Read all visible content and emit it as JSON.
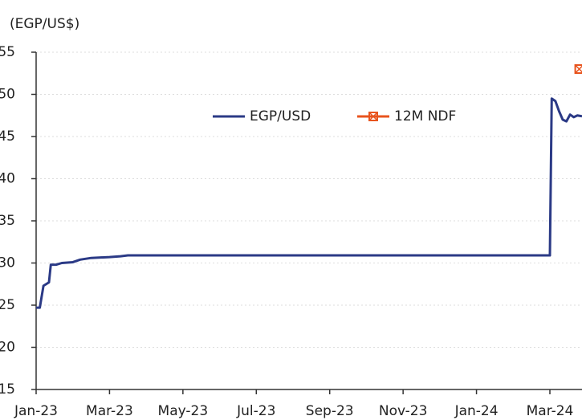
{
  "chart_data": {
    "type": "line",
    "title": "(EGP/US$)",
    "xlim": [
      0,
      14.875
    ],
    "xticks": [
      {
        "value": 0,
        "label": "Jan-23"
      },
      {
        "value": 2,
        "label": "Mar-23"
      },
      {
        "value": 4,
        "label": "May-23"
      },
      {
        "value": 6,
        "label": "Jul-23"
      },
      {
        "value": 8,
        "label": "Sep-23"
      },
      {
        "value": 10,
        "label": "Nov-23"
      },
      {
        "value": 12,
        "label": "Jan-24"
      },
      {
        "value": 14,
        "label": "Mar-24"
      }
    ],
    "ylim": [
      15,
      55
    ],
    "yticks": [
      15,
      20,
      25,
      30,
      35,
      40,
      45,
      50,
      55
    ],
    "grid": true,
    "legend": "top",
    "series": [
      {
        "name": "EGP/USD",
        "color": "#2b3a86",
        "marker": "none",
        "x": [
          0,
          0.1,
          0.2,
          0.35,
          0.4,
          0.55,
          0.7,
          1.0,
          1.2,
          1.5,
          2.0,
          2.3,
          2.5,
          14.0,
          14.05,
          14.15,
          14.25,
          14.35,
          14.45,
          14.55,
          14.65,
          14.75,
          14.875
        ],
        "values": [
          24.7,
          24.7,
          27.3,
          27.7,
          29.8,
          29.8,
          30.0,
          30.1,
          30.4,
          30.6,
          30.7,
          30.8,
          30.9,
          30.9,
          49.5,
          49.2,
          48.0,
          47.0,
          46.8,
          47.6,
          47.3,
          47.5,
          47.4
        ]
      },
      {
        "name": "12M NDF",
        "color": "#e8541e",
        "marker": "x-square",
        "x": [
          14.8
        ],
        "values": [
          53
        ]
      }
    ]
  }
}
